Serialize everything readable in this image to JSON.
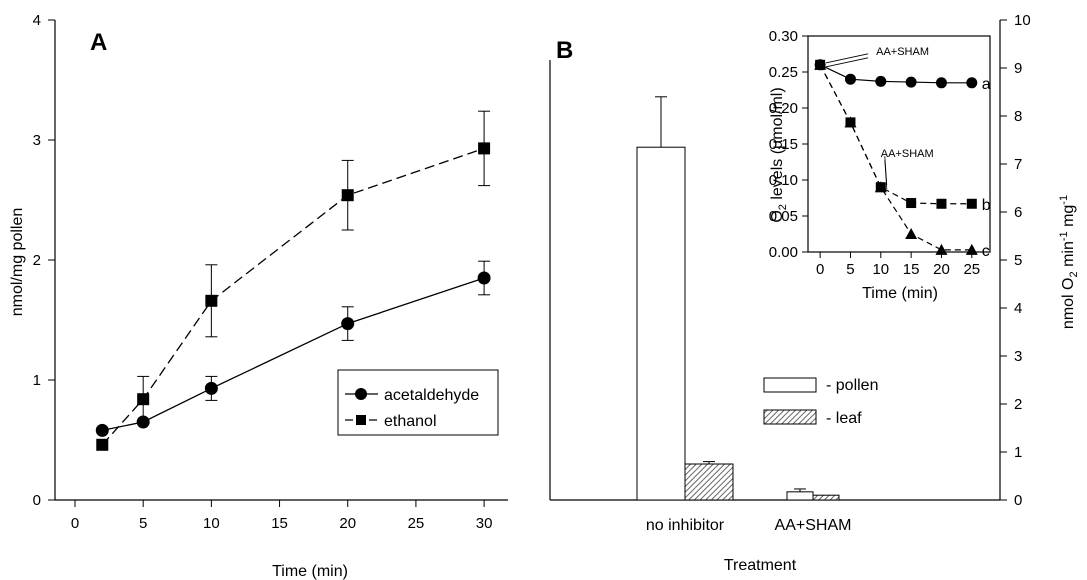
{
  "chart_data": [
    {
      "panel": "A",
      "type": "line",
      "xlabel": "Time (min)",
      "ylabel": "nmol/mg pollen",
      "xlim": [
        0,
        33
      ],
      "ylim": [
        0,
        4
      ],
      "xticks": [
        "0",
        "5",
        "10",
        "15",
        "20",
        "25",
        "30"
      ],
      "yticks": [
        "0",
        "1",
        "2",
        "3",
        "4"
      ],
      "series": [
        {
          "name": "acetaldehyde",
          "marker": "circle",
          "line": "solid",
          "x": [
            2,
            5,
            10,
            20,
            30
          ],
          "y": [
            0.58,
            0.65,
            0.93,
            1.47,
            1.85
          ],
          "err": [
            0.0,
            0.0,
            0.1,
            0.14,
            0.14
          ]
        },
        {
          "name": "ethanol",
          "marker": "square",
          "line": "dashed",
          "x": [
            2,
            5,
            10,
            20,
            30
          ],
          "y": [
            0.46,
            0.84,
            1.66,
            2.54,
            2.93
          ],
          "err": [
            0.0,
            0.19,
            0.3,
            0.29,
            0.31
          ]
        }
      ],
      "legend": "lower-right"
    },
    {
      "panel": "B",
      "type": "bar",
      "xlabel": "Treatment",
      "ylabel": "nmol O2 min-1 mg-1",
      "ylabel_parts": [
        "nmol O",
        "2",
        " min",
        "-1",
        " mg",
        "-1"
      ],
      "ylim": [
        0,
        10
      ],
      "yticks": [
        "0",
        "1",
        "2",
        "3",
        "4",
        "5",
        "6",
        "7",
        "8",
        "9",
        "10"
      ],
      "categories": [
        "no inhibitor",
        "AA+SHAM"
      ],
      "series": [
        {
          "name": "- pollen",
          "fill": "open",
          "values": [
            7.35,
            0.17
          ],
          "err": [
            1.05,
            0.06
          ]
        },
        {
          "name": "- leaf",
          "fill": "hatched",
          "values": [
            0.75,
            0.1
          ],
          "err": [
            0.05,
            0.0
          ]
        }
      ],
      "legend": "center-right"
    },
    {
      "panel": "B-inset",
      "type": "line",
      "xlabel": "Time (min)",
      "ylabel": "O2 levels (µmol/ml)",
      "ylabel_parts": [
        "O",
        "2",
        " levels (µmol/ml)"
      ],
      "xlim": [
        -2,
        28
      ],
      "ylim": [
        0,
        0.3
      ],
      "xticks": [
        "0",
        "5",
        "10",
        "15",
        "20",
        "25"
      ],
      "yticks": [
        "0.00",
        "0.05",
        "0.10",
        "0.15",
        "0.20",
        "0.25",
        "0.30"
      ],
      "series": [
        {
          "name": "a",
          "marker": "circle",
          "line": "solid",
          "x": [
            0,
            5,
            10,
            15,
            20,
            25
          ],
          "y": [
            0.26,
            0.24,
            0.237,
            0.236,
            0.235,
            0.235
          ]
        },
        {
          "name": "b",
          "marker": "square",
          "line": "dashed",
          "x": [
            0,
            5,
            10,
            15,
            20,
            25
          ],
          "y": [
            0.26,
            0.18,
            0.09,
            0.068,
            0.067,
            0.067
          ]
        },
        {
          "name": "c",
          "marker": "triangle",
          "line": "dashed",
          "x": [
            0,
            5,
            10,
            15,
            20,
            25
          ],
          "y": [
            0.26,
            0.18,
            0.09,
            0.025,
            0.003,
            0.003
          ]
        }
      ],
      "annotations": [
        {
          "text": "AA+SHAM",
          "at_x": 0,
          "at_y": 0.26
        },
        {
          "text": "AA+SHAM",
          "at_x": 10,
          "at_y": 0.09
        }
      ]
    }
  ]
}
